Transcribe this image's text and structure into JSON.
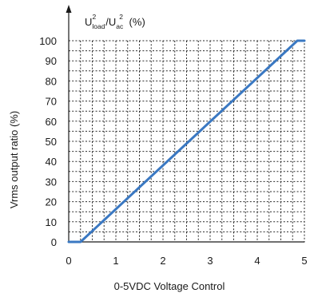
{
  "chart_data": {
    "type": "line",
    "title": "",
    "unit_label": {
      "base": "U",
      "num_sup": "2",
      "num_sub": "load",
      "slash": "/",
      "den_base": "U",
      "den_sup": "2",
      "den_sub": "ac",
      "suffix": " (%)"
    },
    "ylabel": "Vrms  output ratio  (%)",
    "xlabel": "0-5VDC   Voltage Control",
    "xlim": [
      0,
      5
    ],
    "ylim": [
      0,
      100
    ],
    "x_ticks": [
      0,
      1,
      2,
      3,
      4,
      5
    ],
    "y_ticks": [
      0,
      10,
      20,
      30,
      40,
      50,
      60,
      70,
      80,
      90,
      100
    ],
    "grid": true,
    "x_grid_step": 0.25,
    "y_grid_step": 5,
    "series": [
      {
        "color": "#3a78c2",
        "x": [
          0,
          0.25,
          4.85,
          5
        ],
        "y": [
          0,
          0,
          100,
          100
        ]
      }
    ]
  }
}
